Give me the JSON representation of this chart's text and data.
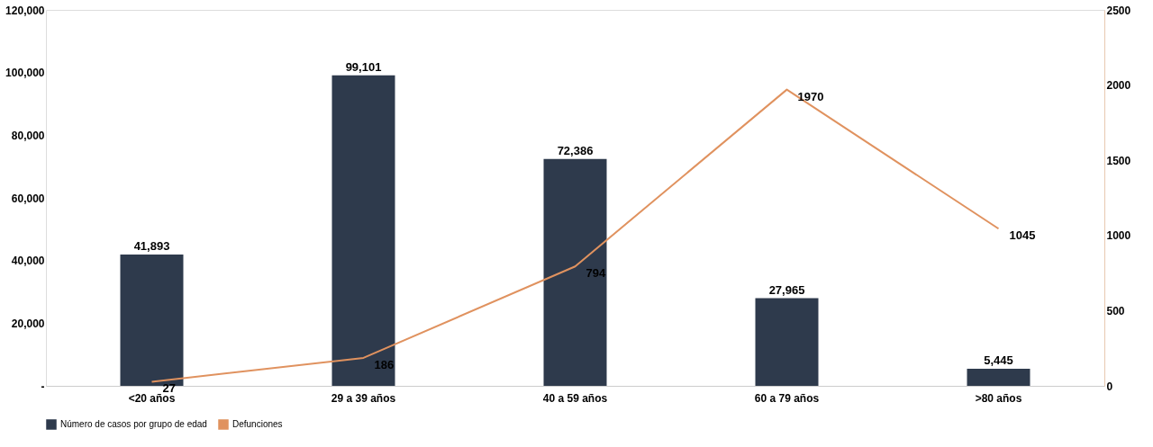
{
  "chart_data": {
    "type": "bar",
    "categories": [
      "<20 años",
      "29 a 39 años",
      "40 a 59 años",
      "60 a 79 años",
      ">80 años"
    ],
    "series": [
      {
        "name": "Número de casos por grupo de edad",
        "color": "#2e3a4c",
        "values": [
          41893,
          99101,
          72386,
          27965,
          5445
        ],
        "value_labels": [
          "41,893",
          "99,101",
          "72,386",
          "27,965",
          "5,445"
        ]
      },
      {
        "name": "Defunciones",
        "type": "line",
        "axis": "y2",
        "color": "#e0925f",
        "values": [
          27,
          186,
          794,
          1970,
          1045
        ],
        "value_labels": [
          "27",
          "186",
          "794",
          "1970",
          "1045"
        ]
      }
    ],
    "ylim": [
      0,
      120000
    ],
    "yticks": [
      {
        "value": 0,
        "label": "-"
      },
      {
        "value": 20000,
        "label": "20,000"
      },
      {
        "value": 40000,
        "label": "40,000"
      },
      {
        "value": 60000,
        "label": "60,000"
      },
      {
        "value": 80000,
        "label": "80,000"
      },
      {
        "value": 100000,
        "label": "100,000"
      },
      {
        "value": 120000,
        "label": "120,000"
      }
    ],
    "y2lim": [
      0,
      2500
    ],
    "y2ticks": [
      0,
      500,
      1000,
      1500,
      2000,
      2500
    ],
    "grid": false,
    "legend": "bottom",
    "marker": "none",
    "line_style": "solid"
  }
}
